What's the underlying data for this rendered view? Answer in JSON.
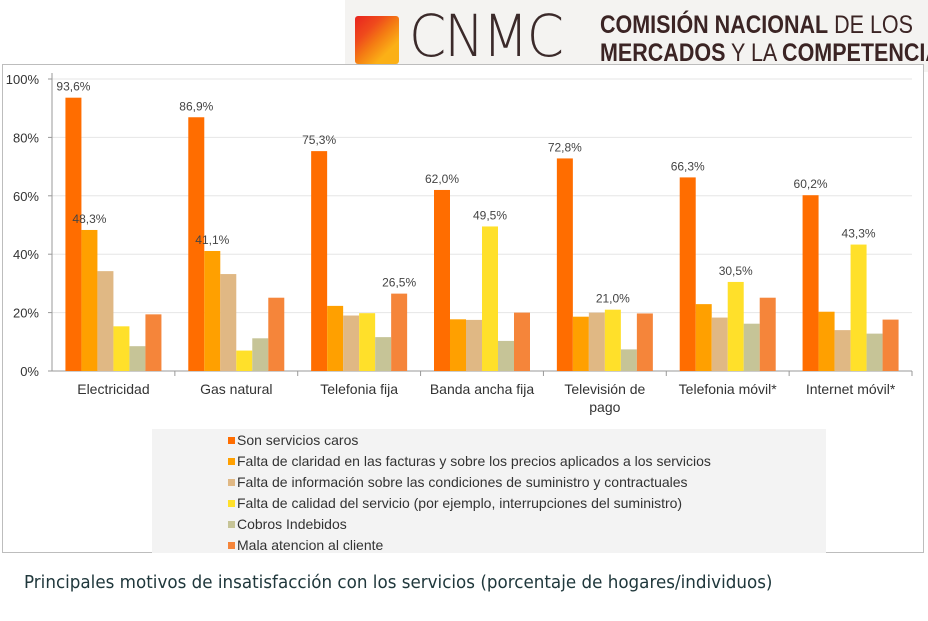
{
  "logo": {
    "wordmark": "CNMC",
    "line1_bold": "COMISIÓN NACIONAL",
    "line1_light": "DE LOS",
    "line2_bold": "MERCADOS",
    "line2_light": "Y LA",
    "line2_bold2": "COMPETENCIA"
  },
  "caption": "Principales motivos de insatisfacción con los servicios (porcentaje de hogares/individuos)",
  "chart_data": {
    "type": "bar",
    "title": "",
    "xlabel": "",
    "ylabel": "",
    "ylim": [
      0,
      100
    ],
    "yticks": [
      "0%",
      "20%",
      "40%",
      "60%",
      "80%",
      "100%"
    ],
    "grid": true,
    "legend_position": "bottom",
    "categories": [
      "Electricidad",
      "Gas natural",
      "Telefonia fija",
      "Banda ancha fija",
      "Televisión de pago",
      "Telefonia móvil*",
      "Internet móvil*"
    ],
    "series": [
      {
        "name": "Son servicios caros",
        "color": "#ff6d00",
        "values": [
          93.6,
          86.9,
          75.3,
          62.0,
          72.8,
          66.3,
          60.2
        ],
        "labels": [
          "93,6%",
          "86,9%",
          "75,3%",
          "62,0%",
          "72,8%",
          "66,3%",
          "60,2%"
        ]
      },
      {
        "name": "Falta de claridad en las facturas y sobre los precios aplicados a los servicios",
        "color": "#ffa000",
        "values": [
          48.3,
          41.1,
          22.3,
          17.7,
          18.6,
          22.9,
          20.3
        ],
        "labels": [
          "48,3%",
          "41,1%",
          "",
          "",
          "",
          "",
          ""
        ]
      },
      {
        "name": "Falta de información sobre las condiciones de suministro y contractuales",
        "color": "#e0b884",
        "values": [
          34.2,
          33.2,
          19.0,
          17.5,
          20.0,
          18.3,
          14.0
        ],
        "labels": [
          "",
          "",
          "",
          "",
          "",
          "",
          ""
        ]
      },
      {
        "name": "Falta de calidad del servicio (por ejemplo, interrupciones del suministro)",
        "color": "#ffe02a",
        "values": [
          15.3,
          7.0,
          19.8,
          49.5,
          21.0,
          30.5,
          43.3
        ],
        "labels": [
          "",
          "",
          "",
          "49,5%",
          "21,0%",
          "30,5%",
          "43,3%"
        ]
      },
      {
        "name": "Cobros Indebidos",
        "color": "#c6c497",
        "values": [
          8.5,
          11.2,
          11.6,
          10.3,
          7.4,
          16.2,
          12.8
        ],
        "labels": [
          "",
          "",
          "",
          "",
          "",
          "",
          ""
        ]
      },
      {
        "name": "Mala atencion al cliente",
        "color": "#f5853a",
        "values": [
          19.4,
          25.1,
          26.5,
          20.0,
          19.7,
          25.1,
          17.6
        ],
        "labels": [
          "",
          "",
          "26,5%",
          "",
          "",
          "",
          ""
        ]
      }
    ]
  }
}
